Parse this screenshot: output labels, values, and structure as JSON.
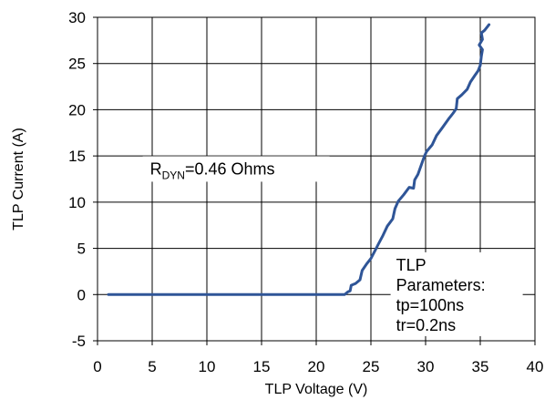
{
  "chart_data": {
    "type": "line",
    "xlabel": "TLP Voltage (V)",
    "ylabel": "TLP Current (A)",
    "xlim": [
      0,
      40
    ],
    "ylim": [
      -5,
      30
    ],
    "x_ticks": [
      0,
      5,
      10,
      15,
      20,
      25,
      30,
      35,
      40
    ],
    "y_ticks": [
      -5,
      0,
      5,
      10,
      15,
      20,
      25,
      30
    ],
    "grid": true,
    "line_color": "#2F5597",
    "series": [
      {
        "points": [
          [
            1.0,
            0.0
          ],
          [
            5,
            0.0
          ],
          [
            10,
            0.0
          ],
          [
            15,
            0.0
          ],
          [
            20,
            0.0
          ],
          [
            22.6,
            0.0
          ],
          [
            22.9,
            0.3
          ],
          [
            23.1,
            0.4
          ],
          [
            23.2,
            1.0
          ],
          [
            23.6,
            1.2
          ],
          [
            24.0,
            1.6
          ],
          [
            24.2,
            2.6
          ],
          [
            24.6,
            3.3
          ],
          [
            25.0,
            3.9
          ],
          [
            25.4,
            4.8
          ],
          [
            25.7,
            5.5
          ],
          [
            26.1,
            6.4
          ],
          [
            26.5,
            7.4
          ],
          [
            27.0,
            8.2
          ],
          [
            27.2,
            9.3
          ],
          [
            27.5,
            10.1
          ],
          [
            28.0,
            10.8
          ],
          [
            28.5,
            11.6
          ],
          [
            28.9,
            11.5
          ],
          [
            29.0,
            12.4
          ],
          [
            29.3,
            13.0
          ],
          [
            29.6,
            14.0
          ],
          [
            29.9,
            15.0
          ],
          [
            30.1,
            15.5
          ],
          [
            30.6,
            16.2
          ],
          [
            31.0,
            17.2
          ],
          [
            31.5,
            18.0
          ],
          [
            32.1,
            19.0
          ],
          [
            32.5,
            19.6
          ],
          [
            32.8,
            20.1
          ],
          [
            32.9,
            21.2
          ],
          [
            33.3,
            21.6
          ],
          [
            33.8,
            22.2
          ],
          [
            34.1,
            23.0
          ],
          [
            34.5,
            23.7
          ],
          [
            34.8,
            24.2
          ],
          [
            35.0,
            24.8
          ],
          [
            35.1,
            25.8
          ],
          [
            35.2,
            26.5
          ],
          [
            34.9,
            27.0
          ],
          [
            35.2,
            27.6
          ],
          [
            35.1,
            28.3
          ],
          [
            35.4,
            28.6
          ],
          [
            35.8,
            29.2
          ]
        ]
      }
    ],
    "annotations": [
      {
        "id": "rdyn",
        "base": "R",
        "sub": "DYN",
        "rest": "=0.46  Ohms",
        "x": 4.8,
        "y": 13.0
      },
      {
        "id": "params",
        "lines": [
          "TLP",
          "Parameters:",
          "tp=100ns",
          "tr=0.2ns"
        ],
        "x": 27.3,
        "y": 2.6
      }
    ]
  }
}
